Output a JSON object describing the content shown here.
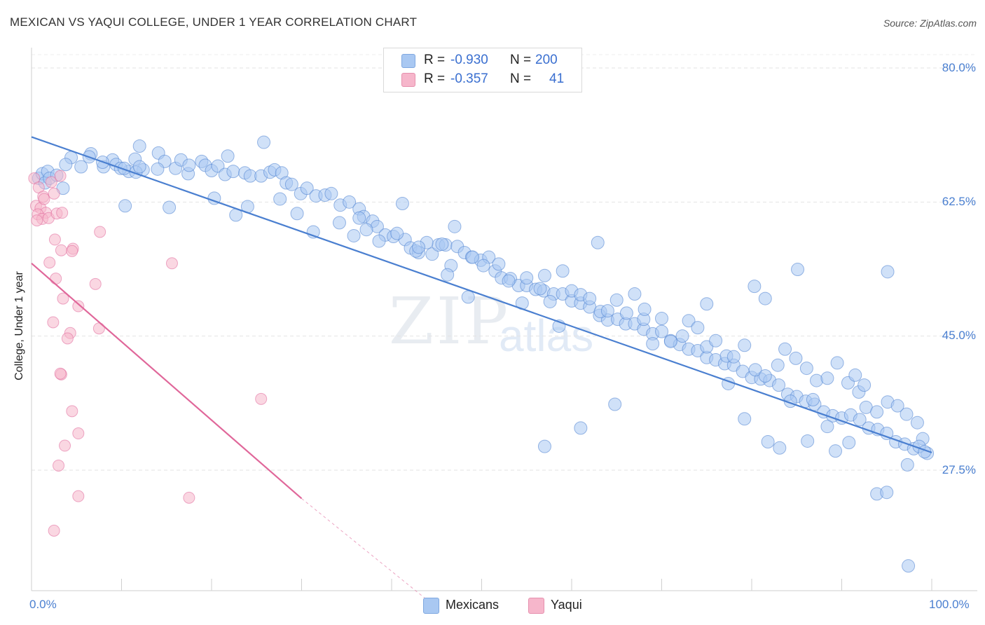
{
  "header": {
    "title": "MEXICAN VS YAQUI COLLEGE, UNDER 1 YEAR CORRELATION CHART",
    "source": "Source: ZipAtlas.com"
  },
  "watermark": {
    "zip": "ZIP",
    "atlas": "atlas"
  },
  "legend_top": {
    "rows": [
      {
        "r_label": "R = ",
        "r_value": "-0.930",
        "n_label": "N = ",
        "n_value": "200",
        "color": "#a9c8f2"
      },
      {
        "r_label": "R = ",
        "r_value": "-0.357",
        "n_label": "N = ",
        "n_value": "41",
        "color": "#f6b6cb"
      }
    ]
  },
  "legend_bottom": {
    "items": [
      {
        "label": "Mexicans",
        "color": "#a9c8f2"
      },
      {
        "label": "Yaqui",
        "color": "#f6b6cb"
      }
    ]
  },
  "chart_data": {
    "type": "scatter",
    "title": "MEXICAN VS YAQUI COLLEGE, UNDER 1 YEAR CORRELATION CHART",
    "xlabel": "",
    "ylabel": "College, Under 1 year",
    "xlim": [
      0,
      100
    ],
    "ylim": [
      10.5,
      82.5
    ],
    "x_tick_labels": [
      "0.0%",
      "100.0%"
    ],
    "y_ticks": [
      80.0,
      62.5,
      45.0,
      27.5
    ],
    "y_tick_labels": [
      "80.0%",
      "62.5%",
      "45.0%",
      "27.5%"
    ],
    "grid": "horizontal dashed",
    "legend_position": "top-center",
    "series": [
      {
        "name": "Mexicans",
        "color": "#4a7fd0",
        "fill": "#a9c8f2",
        "trend": {
          "x": [
            0,
            100
          ],
          "y": [
            71.0,
            29.8
          ],
          "style": "solid"
        },
        "points": [
          [
            0.8,
            65.6
          ],
          [
            1.2,
            66.2
          ],
          [
            1.5,
            65.0
          ],
          [
            1.8,
            66.5
          ],
          [
            2.0,
            65.6
          ],
          [
            2.8,
            66.0
          ],
          [
            3.5,
            64.3
          ],
          [
            4.4,
            68.3
          ],
          [
            5.5,
            67.1
          ],
          [
            6.6,
            68.8
          ],
          [
            8.0,
            67.1
          ],
          [
            9.0,
            68.0
          ],
          [
            3.8,
            67.4
          ],
          [
            6.4,
            68.4
          ],
          [
            7.9,
            67.7
          ],
          [
            9.4,
            67.4
          ],
          [
            10.8,
            66.5
          ],
          [
            11.5,
            68.1
          ],
          [
            12.4,
            66.7
          ],
          [
            14.1,
            68.9
          ],
          [
            14.8,
            67.8
          ],
          [
            9.9,
            66.9
          ],
          [
            10.3,
            66.9
          ],
          [
            11.6,
            66.4
          ],
          [
            12.0,
            67.1
          ],
          [
            14.0,
            66.8
          ],
          [
            16.0,
            66.9
          ],
          [
            16.6,
            68.0
          ],
          [
            17.4,
            66.2
          ],
          [
            17.5,
            67.3
          ],
          [
            18.9,
            67.8
          ],
          [
            19.3,
            67.3
          ],
          [
            20.0,
            66.6
          ],
          [
            20.7,
            67.2
          ],
          [
            21.5,
            66.1
          ],
          [
            22.4,
            66.5
          ],
          [
            23.7,
            66.3
          ],
          [
            24.3,
            65.9
          ],
          [
            25.5,
            65.9
          ],
          [
            26.5,
            66.4
          ],
          [
            27.0,
            66.7
          ],
          [
            27.8,
            66.3
          ],
          [
            28.3,
            65.0
          ],
          [
            28.9,
            64.8
          ],
          [
            29.9,
            63.6
          ],
          [
            30.6,
            64.3
          ],
          [
            31.6,
            63.3
          ],
          [
            32.6,
            63.4
          ],
          [
            33.3,
            63.6
          ],
          [
            34.3,
            62.1
          ],
          [
            35.3,
            62.5
          ],
          [
            36.4,
            61.6
          ],
          [
            36.9,
            60.6
          ],
          [
            37.9,
            60.0
          ],
          [
            38.4,
            59.3
          ],
          [
            39.3,
            58.2
          ],
          [
            40.2,
            58.0
          ],
          [
            41.5,
            57.6
          ],
          [
            42.1,
            56.5
          ],
          [
            43.0,
            55.9
          ],
          [
            44.5,
            55.7
          ],
          [
            45.2,
            56.9
          ],
          [
            46.0,
            56.9
          ],
          [
            47.3,
            56.7
          ],
          [
            48.1,
            55.9
          ],
          [
            48.9,
            55.3
          ],
          [
            49.9,
            54.9
          ],
          [
            50.8,
            55.3
          ],
          [
            51.5,
            53.5
          ],
          [
            52.2,
            52.6
          ],
          [
            53.2,
            52.5
          ],
          [
            54.1,
            51.6
          ],
          [
            55.0,
            51.6
          ],
          [
            56.0,
            51.1
          ],
          [
            56.9,
            50.9
          ],
          [
            58.0,
            50.5
          ],
          [
            59.0,
            50.5
          ],
          [
            60.0,
            49.6
          ],
          [
            61.0,
            49.3
          ],
          [
            62.0,
            48.8
          ],
          [
            63.1,
            47.7
          ],
          [
            64.0,
            47.1
          ],
          [
            65.1,
            47.2
          ],
          [
            66.0,
            46.6
          ],
          [
            67.0,
            46.6
          ],
          [
            68.0,
            45.9
          ],
          [
            69.0,
            45.3
          ],
          [
            70.0,
            45.6
          ],
          [
            71.0,
            44.4
          ],
          [
            72.0,
            43.9
          ],
          [
            73.0,
            43.3
          ],
          [
            74.0,
            43.1
          ],
          [
            75.0,
            42.2
          ],
          [
            76.0,
            41.9
          ],
          [
            77.0,
            41.4
          ],
          [
            78.0,
            41.2
          ],
          [
            79.0,
            40.4
          ],
          [
            80.0,
            39.6
          ],
          [
            81.0,
            39.4
          ],
          [
            82.0,
            39.2
          ],
          [
            83.0,
            38.6
          ],
          [
            84.0,
            37.4
          ],
          [
            85.0,
            37.1
          ],
          [
            86.0,
            36.5
          ],
          [
            87.0,
            36.1
          ],
          [
            88.0,
            35.1
          ],
          [
            89.0,
            34.6
          ],
          [
            90.0,
            34.3
          ],
          [
            91.0,
            34.7
          ],
          [
            92.0,
            34.1
          ],
          [
            93.0,
            33.0
          ],
          [
            94.0,
            32.8
          ],
          [
            95.0,
            32.3
          ],
          [
            96.0,
            31.2
          ],
          [
            97.0,
            30.9
          ],
          [
            98.0,
            30.3
          ],
          [
            99.0,
            31.6
          ],
          [
            99.5,
            29.7
          ],
          [
            98.6,
            30.6
          ],
          [
            97.3,
            28.2
          ],
          [
            10.4,
            62.0
          ],
          [
            15.3,
            61.8
          ],
          [
            20.3,
            63.0
          ],
          [
            22.7,
            60.8
          ],
          [
            24.0,
            61.9
          ],
          [
            27.6,
            62.9
          ],
          [
            29.5,
            61.0
          ],
          [
            31.3,
            58.6
          ],
          [
            34.2,
            59.8
          ],
          [
            35.8,
            58.1
          ],
          [
            36.4,
            60.4
          ],
          [
            37.2,
            58.9
          ],
          [
            38.6,
            57.4
          ],
          [
            40.6,
            58.4
          ],
          [
            41.2,
            62.3
          ],
          [
            42.7,
            56.1
          ],
          [
            43.9,
            57.2
          ],
          [
            45.6,
            57.0
          ],
          [
            46.6,
            54.2
          ],
          [
            47.0,
            59.3
          ],
          [
            49.0,
            55.3
          ],
          [
            50.2,
            54.2
          ],
          [
            51.9,
            54.4
          ],
          [
            53.0,
            52.2
          ],
          [
            55.0,
            52.6
          ],
          [
            57.0,
            52.9
          ],
          [
            59.0,
            53.5
          ],
          [
            60.0,
            50.9
          ],
          [
            61.0,
            50.4
          ],
          [
            62.0,
            49.9
          ],
          [
            63.2,
            48.2
          ],
          [
            64.0,
            48.3
          ],
          [
            65.0,
            49.7
          ],
          [
            66.1,
            48.0
          ],
          [
            67.0,
            50.5
          ],
          [
            68.0,
            47.2
          ],
          [
            69.0,
            44.0
          ],
          [
            70.0,
            47.3
          ],
          [
            71.0,
            44.3
          ],
          [
            72.3,
            45.0
          ],
          [
            73.0,
            47.0
          ],
          [
            74.0,
            46.1
          ],
          [
            75.0,
            43.6
          ],
          [
            76.0,
            44.4
          ],
          [
            77.2,
            42.4
          ],
          [
            78.0,
            42.3
          ],
          [
            79.2,
            43.8
          ],
          [
            80.4,
            40.6
          ],
          [
            81.5,
            39.8
          ],
          [
            82.9,
            41.2
          ],
          [
            83.7,
            43.3
          ],
          [
            84.9,
            42.1
          ],
          [
            86.1,
            40.8
          ],
          [
            87.2,
            39.2
          ],
          [
            88.4,
            39.5
          ],
          [
            89.5,
            41.5
          ],
          [
            90.7,
            38.9
          ],
          [
            91.9,
            37.7
          ],
          [
            92.7,
            35.7
          ],
          [
            93.9,
            35.1
          ],
          [
            95.1,
            36.4
          ],
          [
            96.2,
            35.9
          ],
          [
            97.2,
            34.8
          ],
          [
            98.4,
            33.7
          ],
          [
            99.2,
            29.9
          ],
          [
            62.9,
            57.2
          ],
          [
            56.5,
            51.2
          ],
          [
            57.6,
            49.5
          ],
          [
            54.5,
            49.3
          ],
          [
            43.0,
            56.6
          ],
          [
            21.8,
            68.5
          ],
          [
            25.8,
            70.3
          ],
          [
            12.0,
            69.8
          ],
          [
            80.3,
            51.5
          ],
          [
            85.1,
            53.7
          ],
          [
            95.1,
            53.4
          ],
          [
            75.0,
            49.2
          ],
          [
            81.5,
            49.9
          ],
          [
            68.1,
            48.5
          ],
          [
            46.2,
            53.0
          ],
          [
            58.6,
            46.3
          ],
          [
            48.5,
            50.1
          ],
          [
            92.5,
            38.6
          ],
          [
            91.5,
            39.9
          ],
          [
            88.4,
            33.2
          ],
          [
            86.8,
            36.7
          ],
          [
            84.3,
            36.5
          ],
          [
            83.1,
            30.4
          ],
          [
            81.8,
            31.2
          ],
          [
            93.9,
            24.4
          ],
          [
            97.4,
            15.0
          ],
          [
            95.0,
            24.6
          ],
          [
            89.3,
            30.0
          ],
          [
            86.2,
            31.3
          ],
          [
            90.8,
            31.1
          ],
          [
            79.2,
            34.2
          ],
          [
            77.4,
            38.8
          ],
          [
            64.8,
            36.1
          ],
          [
            61.0,
            33.0
          ],
          [
            57.0,
            30.6
          ]
        ]
      },
      {
        "name": "Yaqui",
        "color": "#e0679a",
        "fill": "#f6b6cb",
        "trend": {
          "x": [
            0,
            30
          ],
          "y": [
            54.5,
            23.8
          ],
          "style": "solid",
          "extended_x": [
            30,
            44
          ],
          "extended_y": [
            23.8,
            10.5
          ]
        },
        "points": [
          [
            0.3,
            65.6
          ],
          [
            0.8,
            64.4
          ],
          [
            1.3,
            63.2
          ],
          [
            0.5,
            62.0
          ],
          [
            1.0,
            61.7
          ],
          [
            1.6,
            61.1
          ],
          [
            0.7,
            60.9
          ],
          [
            1.2,
            60.3
          ],
          [
            0.6,
            60.1
          ],
          [
            1.9,
            60.4
          ],
          [
            1.4,
            62.9
          ],
          [
            2.8,
            61.0
          ],
          [
            2.5,
            63.6
          ],
          [
            2.2,
            65.1
          ],
          [
            3.4,
            61.1
          ],
          [
            3.2,
            65.9
          ],
          [
            2.0,
            54.6
          ],
          [
            2.6,
            57.6
          ],
          [
            3.3,
            56.2
          ],
          [
            4.6,
            56.4
          ],
          [
            4.5,
            56.1
          ],
          [
            5.2,
            48.9
          ],
          [
            4.3,
            45.4
          ],
          [
            3.5,
            49.9
          ],
          [
            2.4,
            46.8
          ],
          [
            2.7,
            52.5
          ],
          [
            3.3,
            40.0
          ],
          [
            4.0,
            44.7
          ],
          [
            4.5,
            35.2
          ],
          [
            5.2,
            32.3
          ],
          [
            3.0,
            28.1
          ],
          [
            2.5,
            19.6
          ],
          [
            5.2,
            24.1
          ],
          [
            3.7,
            30.7
          ],
          [
            3.2,
            40.1
          ],
          [
            7.1,
            51.8
          ],
          [
            7.5,
            46.0
          ],
          [
            7.6,
            58.6
          ],
          [
            15.6,
            54.5
          ],
          [
            25.5,
            36.8
          ],
          [
            17.5,
            23.9
          ]
        ]
      }
    ]
  }
}
